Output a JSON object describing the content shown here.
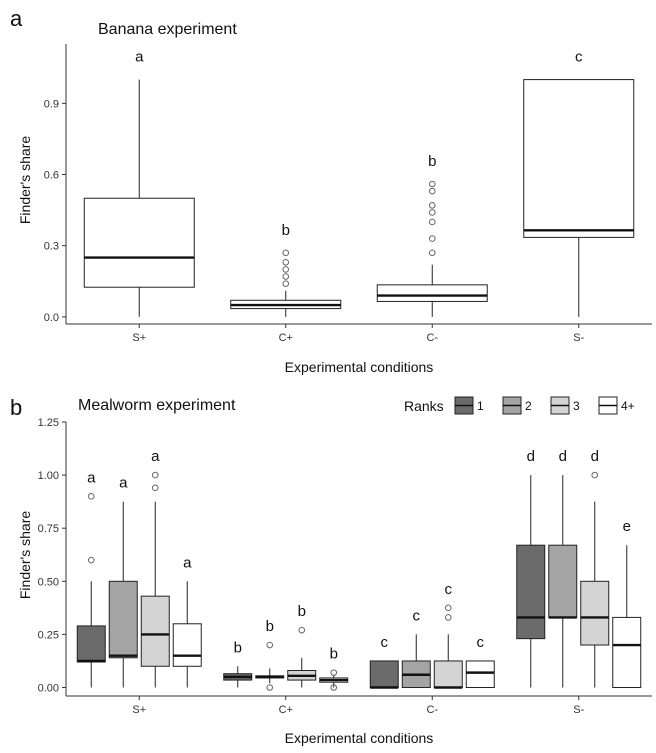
{
  "chart_data": [
    {
      "panel": "a",
      "type": "boxplot",
      "title": "Banana experiment",
      "xlabel": "Experimental conditions",
      "ylabel": "Finder's share",
      "ylim": [
        -0.03,
        1.15
      ],
      "yticks": [
        0.0,
        0.3,
        0.6,
        0.9
      ],
      "ytick_labels": [
        "0.0",
        "0.3",
        "0.6",
        "0.9"
      ],
      "categories": [
        "S+",
        "C+",
        "C-",
        "S-"
      ],
      "boxes": [
        {
          "category": "S+",
          "min": 0.0,
          "q1": 0.125,
          "median": 0.25,
          "q3": 0.5,
          "max": 1.0,
          "outliers": [],
          "letter": "a"
        },
        {
          "category": "C+",
          "min": 0.0,
          "q1": 0.035,
          "median": 0.05,
          "q3": 0.07,
          "max": 0.11,
          "outliers": [
            0.14,
            0.17,
            0.2,
            0.23,
            0.27
          ],
          "letter": "b"
        },
        {
          "category": "C-",
          "min": 0.0,
          "q1": 0.065,
          "median": 0.09,
          "q3": 0.135,
          "max": 0.22,
          "outliers": [
            0.27,
            0.33,
            0.4,
            0.44,
            0.47,
            0.53,
            0.56
          ],
          "letter": "b"
        },
        {
          "category": "S-",
          "min": 0.0,
          "q1": 0.335,
          "median": 0.365,
          "q3": 1.0,
          "max": 1.0,
          "outliers": [],
          "letter": "c"
        }
      ]
    },
    {
      "panel": "b",
      "type": "boxplot",
      "title": "Mealworm experiment",
      "xlabel": "Experimental conditions",
      "ylabel": "Finder's share",
      "ylim": [
        -0.04,
        1.25
      ],
      "yticks": [
        0.0,
        0.25,
        0.5,
        0.75,
        1.0,
        1.25
      ],
      "ytick_labels": [
        "0.00",
        "0.25",
        "0.50",
        "0.75",
        "1.00",
        "1.25"
      ],
      "categories": [
        "S+",
        "C+",
        "C-",
        "S-"
      ],
      "legend": {
        "title": "Ranks",
        "placement": "top-right",
        "entries": [
          "1",
          "2",
          "3",
          "4+"
        ]
      },
      "series_colors": [
        "#6b6b6b",
        "#a4a4a4",
        "#d4d4d4",
        "#ffffff"
      ],
      "groups": [
        {
          "category": "S+",
          "boxes": [
            {
              "rank": "1",
              "min": 0.0,
              "q1": 0.12,
              "median": 0.125,
              "q3": 0.29,
              "max": 0.5,
              "outliers": [
                0.6,
                0.9
              ],
              "letter": "a"
            },
            {
              "rank": "2",
              "min": 0.0,
              "q1": 0.14,
              "median": 0.15,
              "q3": 0.5,
              "max": 0.875,
              "outliers": [],
              "letter": "a"
            },
            {
              "rank": "3",
              "min": 0.0,
              "q1": 0.1,
              "median": 0.25,
              "q3": 0.43,
              "max": 0.875,
              "outliers": [
                0.94,
                1.0
              ],
              "letter": "a"
            },
            {
              "rank": "4+",
              "min": 0.0,
              "q1": 0.1,
              "median": 0.15,
              "q3": 0.3,
              "max": 0.5,
              "outliers": [],
              "letter": "a"
            }
          ]
        },
        {
          "category": "C+",
          "boxes": [
            {
              "rank": "1",
              "min": 0.0,
              "q1": 0.035,
              "median": 0.05,
              "q3": 0.065,
              "max": 0.1,
              "outliers": [],
              "letter": "b"
            },
            {
              "rank": "2",
              "min": 0.02,
              "q1": 0.045,
              "median": 0.05,
              "q3": 0.055,
              "max": 0.09,
              "outliers": [
                0.0,
                0.2
              ],
              "letter": "b"
            },
            {
              "rank": "3",
              "min": 0.0,
              "q1": 0.035,
              "median": 0.055,
              "q3": 0.08,
              "max": 0.14,
              "outliers": [
                0.27
              ],
              "letter": "b"
            },
            {
              "rank": "4+",
              "min": 0.0,
              "q1": 0.025,
              "median": 0.035,
              "q3": 0.045,
              "max": 0.06,
              "outliers": [
                0.0,
                0.07
              ],
              "letter": "b"
            }
          ]
        },
        {
          "category": "C-",
          "boxes": [
            {
              "rank": "1",
              "min": 0.0,
              "q1": 0.0,
              "median": 0.0,
              "q3": 0.125,
              "max": 0.125,
              "outliers": [],
              "letter": "c"
            },
            {
              "rank": "2",
              "min": 0.0,
              "q1": 0.0,
              "median": 0.06,
              "q3": 0.125,
              "max": 0.25,
              "outliers": [],
              "letter": "c"
            },
            {
              "rank": "3",
              "min": 0.0,
              "q1": 0.0,
              "median": 0.0,
              "q3": 0.125,
              "max": 0.25,
              "outliers": [
                0.33,
                0.375
              ],
              "letter": "c"
            },
            {
              "rank": "4+",
              "min": 0.0,
              "q1": 0.0,
              "median": 0.07,
              "q3": 0.125,
              "max": 0.125,
              "outliers": [],
              "letter": "c"
            }
          ]
        },
        {
          "category": "S-",
          "boxes": [
            {
              "rank": "1",
              "min": 0.0,
              "q1": 0.23,
              "median": 0.33,
              "q3": 0.67,
              "max": 1.0,
              "outliers": [],
              "letter": "d"
            },
            {
              "rank": "2",
              "min": 0.0,
              "q1": 0.33,
              "median": 0.33,
              "q3": 0.67,
              "max": 1.0,
              "outliers": [],
              "letter": "d"
            },
            {
              "rank": "3",
              "min": 0.0,
              "q1": 0.2,
              "median": 0.33,
              "q3": 0.5,
              "max": 0.875,
              "outliers": [
                1.0
              ],
              "letter": "d"
            },
            {
              "rank": "4+",
              "min": 0.0,
              "q1": 0.0,
              "median": 0.2,
              "q3": 0.33,
              "max": 0.67,
              "outliers": [],
              "letter": "e"
            }
          ]
        }
      ]
    }
  ]
}
